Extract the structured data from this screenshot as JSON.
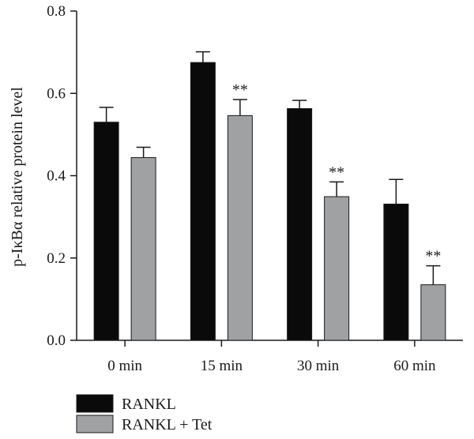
{
  "chart_data": {
    "type": "bar",
    "title": "",
    "xlabel": "",
    "ylabel": "p-IκBα relative protein level",
    "ylim": [
      0,
      0.8
    ],
    "yticks": [
      "0.0",
      "0.2",
      "0.4",
      "0.6",
      "0.8"
    ],
    "categories": [
      "0 min",
      "15 min",
      "30 min",
      "60 min"
    ],
    "series": [
      {
        "name": "RANKL",
        "color": "#0a0a0a",
        "values": [
          0.53,
          0.675,
          0.563,
          0.331
        ],
        "errors": [
          0.036,
          0.026,
          0.02,
          0.06
        ],
        "significance": [
          "",
          "",
          "",
          ""
        ]
      },
      {
        "name": "RANKL + Tet",
        "color": "#a0a1a3",
        "values": [
          0.444,
          0.546,
          0.349,
          0.135
        ],
        "errors": [
          0.025,
          0.039,
          0.036,
          0.046
        ],
        "significance": [
          "",
          "**",
          "**",
          "**"
        ]
      }
    ],
    "legend": "bottom-left",
    "grid": false
  }
}
